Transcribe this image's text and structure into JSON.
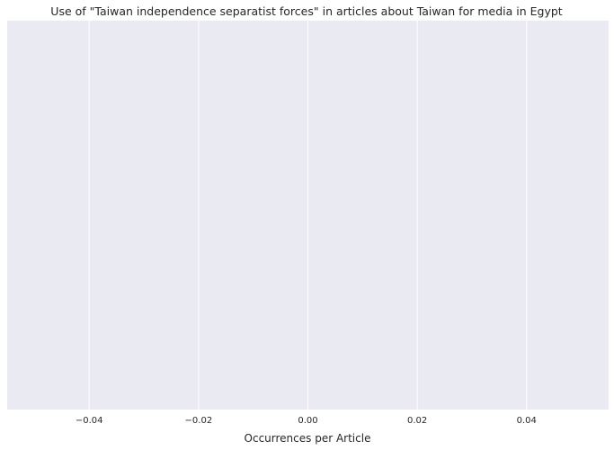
{
  "chart_data": {
    "type": "bar",
    "title": "Use of \"Taiwan independence separatist forces\" in articles about Taiwan for media in Egypt",
    "xlabel": "Occurrences per Article",
    "ylabel": "",
    "categories": [],
    "values": [],
    "xlim": [
      -0.055,
      0.055
    ],
    "xticks": [
      -0.04,
      -0.02,
      0.0,
      0.02,
      0.04
    ],
    "xtick_labels": [
      "−0.04",
      "−0.02",
      "0.00",
      "0.02",
      "0.04"
    ],
    "grid": true,
    "orientation": "horizontal",
    "colors": {
      "plot_background": "#eaeaf2",
      "grid": "#ffffff",
      "text": "#262626"
    }
  }
}
